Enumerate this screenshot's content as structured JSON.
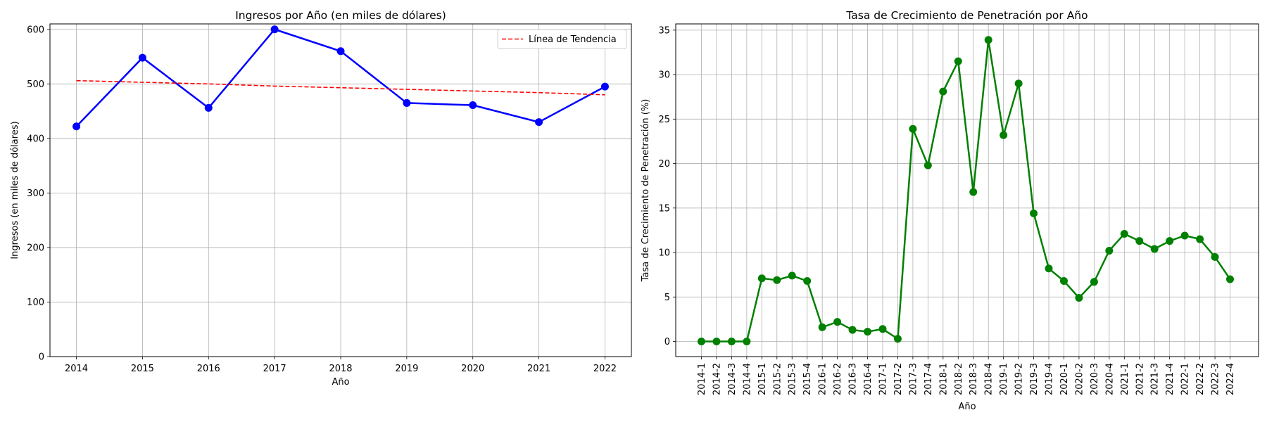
{
  "chart_data": [
    {
      "type": "line",
      "title": "Ingresos por Año (en miles de dólares)",
      "xlabel": "Año",
      "ylabel": "Ingresos (en miles de dólares)",
      "x": [
        2014,
        2015,
        2016,
        2017,
        2018,
        2019,
        2020,
        2021,
        2022
      ],
      "xlim": [
        2013.6,
        2022.4
      ],
      "ylim": [
        0,
        610
      ],
      "yticks": [
        0,
        100,
        200,
        300,
        400,
        500,
        600
      ],
      "grid": true,
      "legend": "top-right",
      "series": [
        {
          "values": [
            422,
            548,
            456,
            600,
            560,
            465,
            461,
            430,
            495
          ],
          "color": "#0000ff",
          "style": "solid-markers"
        },
        {
          "name": "Línea de Tendencia",
          "values": [
            506,
            503,
            500,
            496,
            493,
            490,
            487,
            484,
            480
          ],
          "color": "#ff0000",
          "style": "dashed"
        }
      ]
    },
    {
      "type": "line",
      "title": "Tasa de Crecimiento de Penetración por Año",
      "xlabel": "Año",
      "ylabel": "Tasa de Crecimiento de Penetración (%)",
      "categories": [
        "2014-1",
        "2014-2",
        "2014-3",
        "2014-4",
        "2015-1",
        "2015-2",
        "2015-3",
        "2015-4",
        "2016-1",
        "2016-2",
        "2016-3",
        "2016-4",
        "2017-1",
        "2017-2",
        "2017-3",
        "2017-4",
        "2018-1",
        "2018-2",
        "2018-3",
        "2018-4",
        "2019-1",
        "2019-2",
        "2019-3",
        "2019-4",
        "2020-1",
        "2020-2",
        "2020-3",
        "2020-4",
        "2021-1",
        "2021-2",
        "2021-3",
        "2021-4",
        "2022-1",
        "2022-2",
        "2022-3",
        "2022-4"
      ],
      "ylim": [
        -1.7,
        35.7
      ],
      "yticks": [
        0,
        5,
        10,
        15,
        20,
        25,
        30,
        35
      ],
      "grid": true,
      "series": [
        {
          "values": [
            0,
            0,
            0,
            0,
            7.1,
            6.9,
            7.4,
            6.8,
            1.6,
            2.2,
            1.3,
            1.1,
            1.4,
            0.3,
            23.9,
            19.8,
            28.1,
            31.5,
            16.8,
            33.9,
            23.2,
            29.0,
            14.4,
            8.2,
            6.8,
            4.9,
            6.7,
            10.2,
            12.1,
            11.3,
            10.4,
            11.3,
            11.9,
            11.5,
            9.5,
            7.0
          ],
          "color": "#008000",
          "style": "solid-markers"
        }
      ]
    }
  ]
}
